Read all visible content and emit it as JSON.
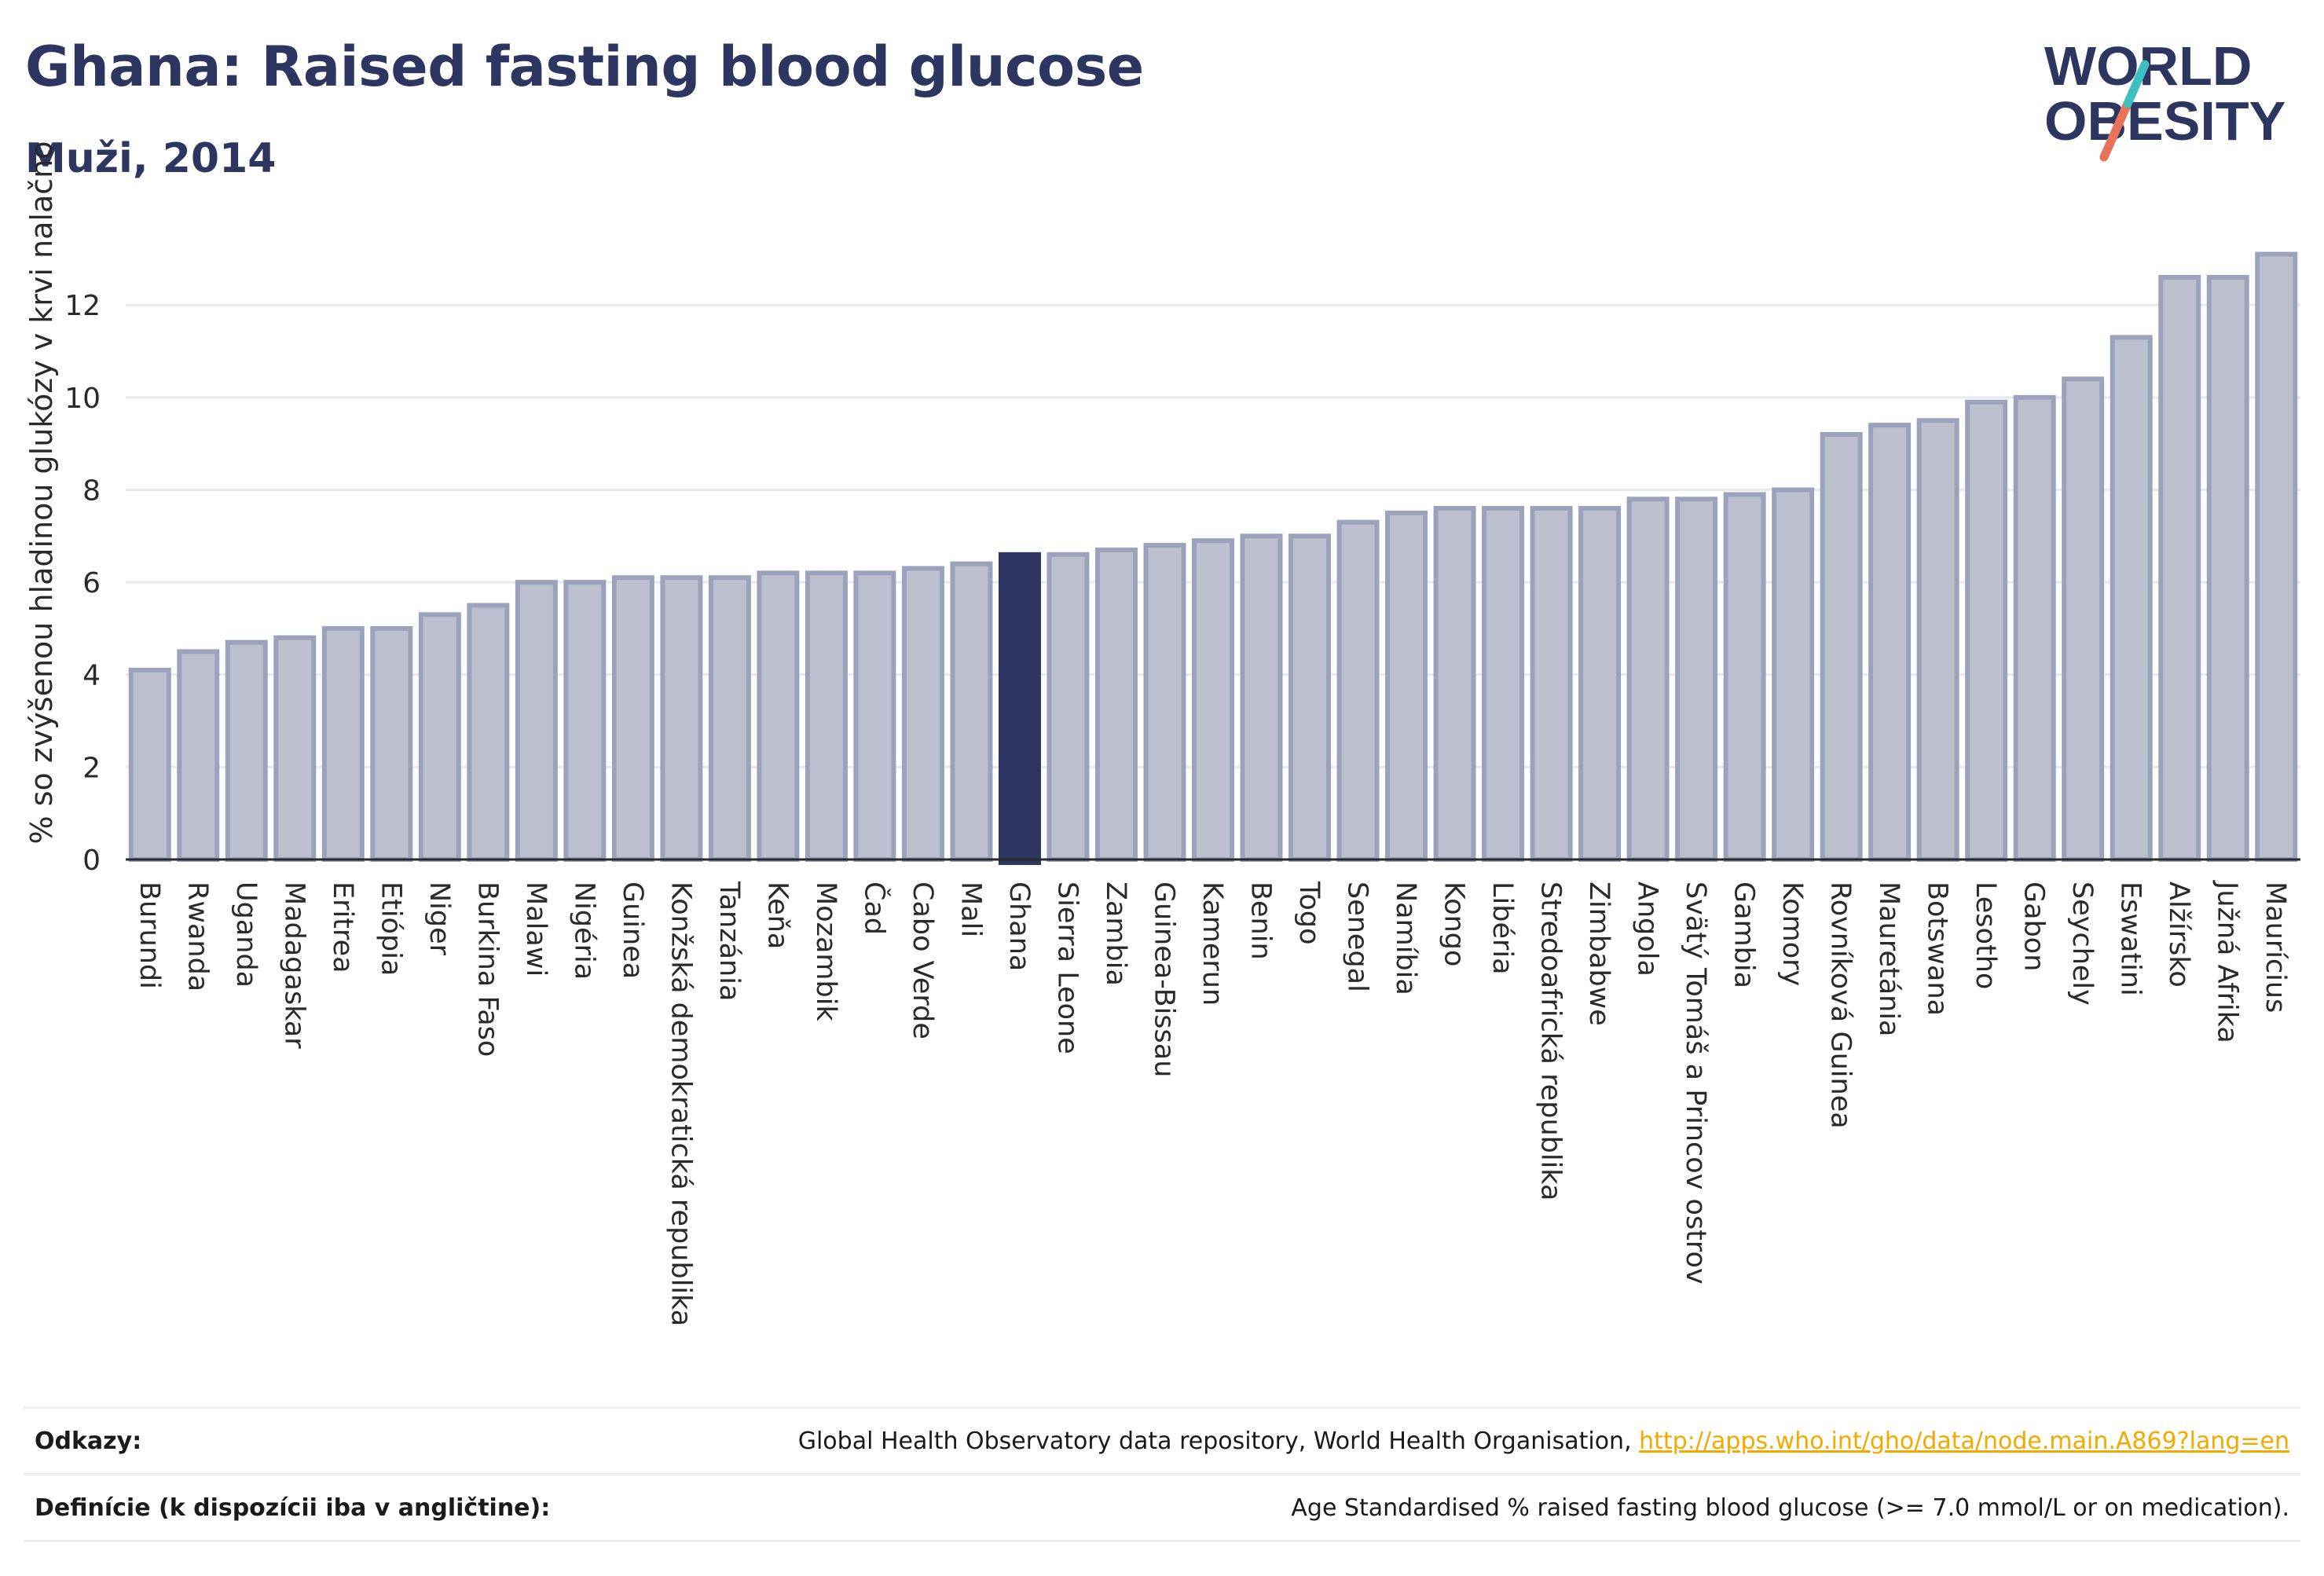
{
  "title": "Ghana: Raised fasting blood glucose",
  "subtitle": "Muži, 2014",
  "logo": {
    "line1": "WORLD",
    "line2": "OBESITY",
    "colors": {
      "text": "#2d3561",
      "slash_orange": "#e8735a",
      "slash_teal": "#3dbfbf"
    }
  },
  "colors": {
    "bar": "#bcc0ce",
    "bar_edge": "#9ca2bb",
    "highlight": "#2d3561"
  },
  "chart_data": {
    "type": "bar",
    "ylabel": "% so zvýšenou hladinou glukózy v krvi nalačno",
    "xlabel": "",
    "ylim": [
      0,
      13.5
    ],
    "yticks": [
      0,
      2,
      4,
      6,
      8,
      10,
      12
    ],
    "grid": true,
    "highlight": "Ghana",
    "categories": [
      "Burundi",
      "Rwanda",
      "Uganda",
      "Madagaskar",
      "Eritrea",
      "Etiópia",
      "Niger",
      "Burkina Faso",
      "Malawi",
      "Nigéria",
      "Guinea",
      "Konžská demokratická republika",
      "Tanzánia",
      "Keňa",
      "Mozambik",
      "Čad",
      "Cabo Verde",
      "Mali",
      "Ghana",
      "Sierra Leone",
      "Zambia",
      "Guinea-Bissau",
      "Kamerun",
      "Benin",
      "Togo",
      "Senegal",
      "Namíbia",
      "Kongo",
      "Libéria",
      "Stredoafrická republika",
      "Zimbabwe",
      "Angola",
      "Svätý Tomáš a Princov ostrov",
      "Gambia",
      "Komory",
      "Rovníková Guinea",
      "Mauretánia",
      "Botswana",
      "Lesotho",
      "Gabon",
      "Seychely",
      "Eswatini",
      "Alžírsko",
      "Južná Afrika",
      "Maurícius"
    ],
    "values": [
      4.1,
      4.5,
      4.7,
      4.8,
      5.0,
      5.0,
      5.3,
      5.5,
      6.0,
      6.0,
      6.1,
      6.1,
      6.1,
      6.2,
      6.2,
      6.2,
      6.3,
      6.4,
      6.6,
      6.6,
      6.7,
      6.8,
      6.9,
      7.0,
      7.0,
      7.3,
      7.5,
      7.6,
      7.6,
      7.6,
      7.6,
      7.8,
      7.8,
      7.9,
      8.0,
      9.2,
      9.4,
      9.5,
      9.9,
      10.0,
      10.4,
      11.3,
      12.6,
      12.6,
      13.1
    ]
  },
  "footer": {
    "refs_label": "Odkazy:",
    "refs_text": "Global Health Observatory data repository, World Health Organisation, ",
    "refs_link": "http://apps.who.int/gho/data/node.main.A869?lang=en",
    "defs_label": "Definície (k dispozícii iba v angličtine):",
    "defs_text": "Age Standardised % raised fasting blood glucose (>= 7.0 mmol/L or on medication)."
  }
}
